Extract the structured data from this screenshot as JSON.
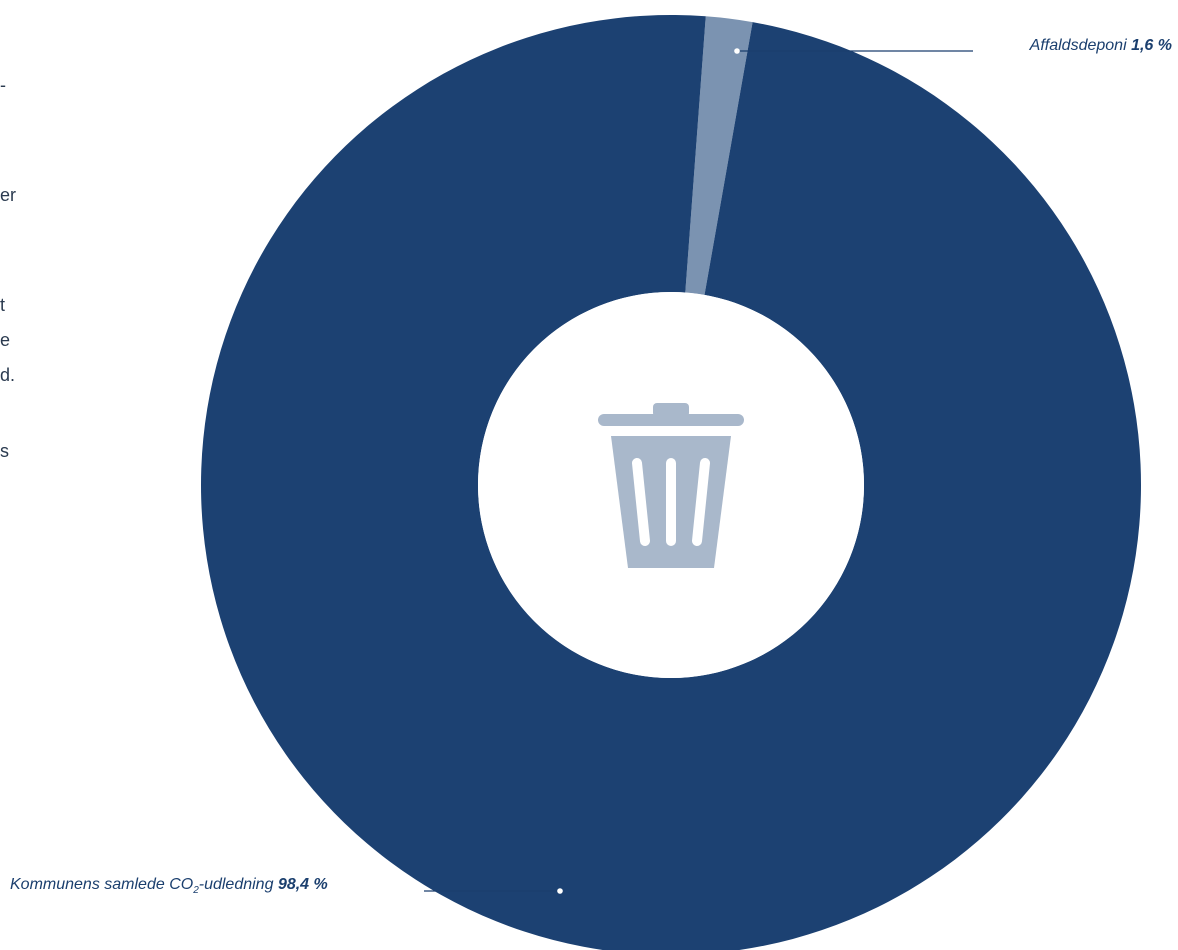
{
  "colors": {
    "main_slice": "#1c4172",
    "small_slice": "#7b93b1",
    "icon": "#a9b8cb",
    "text": "#1b3f6e",
    "leader_line": "#1b3f6e"
  },
  "icon": {
    "center_icon": "trash-can-icon"
  },
  "left_text_fragments": [
    "-",
    "er",
    "t",
    "e",
    "d.",
    "s"
  ],
  "chart_data": {
    "type": "pie",
    "donut": true,
    "labels": [
      "Affaldsdeponi",
      "Kommunens samlede CO2-udledning"
    ],
    "values": [
      1.6,
      98.4
    ],
    "value_labels": [
      "1,6 %",
      "98,4 %"
    ],
    "start_angle_deg": 10,
    "title": "",
    "legend": "callouts"
  },
  "callouts": {
    "top": {
      "label": "Affaldsdeponi",
      "value": "1,6 %"
    },
    "bottom": {
      "label_main": "Kommunens samlede CO",
      "label_sub": "2",
      "label_tail": "-udledning",
      "value": "98,4 %"
    }
  }
}
